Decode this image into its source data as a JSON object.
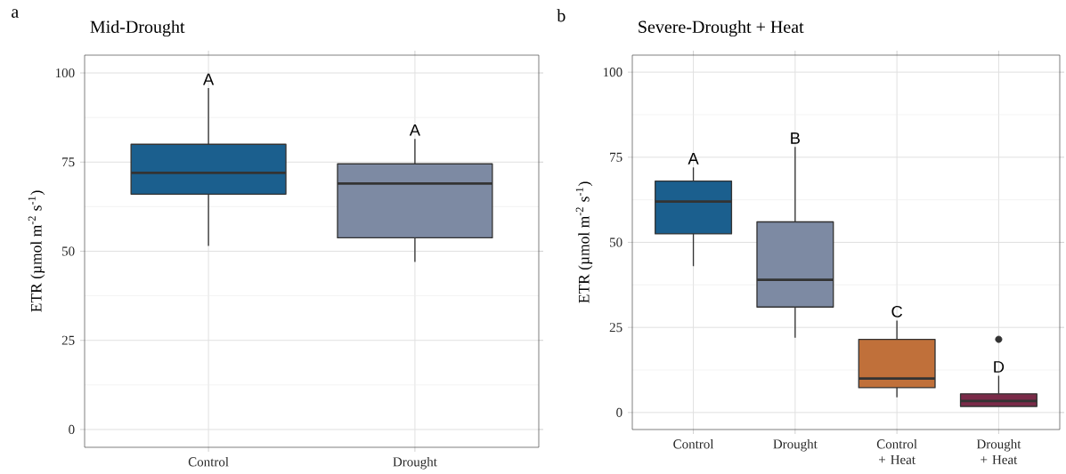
{
  "chart_data": [
    {
      "type": "box",
      "title": "Mid-Drought",
      "ylabel": "ETR (µmol m$^{-2}$ s$^{-1}$)",
      "categories": [
        "Control",
        "Drought"
      ],
      "colors": [
        "#1b5f8e",
        "#7d8aa3"
      ],
      "boxes": [
        {
          "low": 51.5,
          "q1": 66,
          "median": 72,
          "q3": 80,
          "high": 95.75
        },
        {
          "low": 47,
          "q1": 53.75,
          "median": 69,
          "q3": 74.5,
          "high": 81.5
        }
      ],
      "ylim": [
        -5,
        105
      ],
      "yticks": [
        0,
        25,
        50,
        75,
        100
      ],
      "grid": true,
      "annotations": [
        "a",
        "A",
        "A"
      ]
    },
    {
      "type": "box",
      "title": "Severe-Drought + Heat",
      "ylabel": "ETR (µmol m$^{-2}$ s$^{-1}$)",
      "categories": [
        "Control",
        "Drought",
        "Control + Heat",
        "Drought + Heat"
      ],
      "colors": [
        "#1b5f8e",
        "#7d8aa3",
        "#c0703a",
        "#7a2a48"
      ],
      "boxes": [
        {
          "low": 43,
          "q1": 52.5,
          "median": 62,
          "q3": 68,
          "high": 72
        },
        {
          "low": 22,
          "q1": 31,
          "median": 39,
          "q3": 56,
          "high": 78
        },
        {
          "low": 4.5,
          "q1": 7.3,
          "median": 10,
          "q3": 21.5,
          "high": 27
        },
        {
          "low": 1.8,
          "q1": 1.8,
          "median": 3.4,
          "q3": 5.5,
          "high": 10.8,
          "outliers": [
            21.5
          ]
        }
      ],
      "ylim": [
        -5,
        105
      ],
      "yticks": [
        0,
        25,
        50,
        75,
        100
      ],
      "grid": true,
      "annotations": [
        "b",
        "A",
        "B",
        "C",
        "D"
      ]
    }
  ]
}
